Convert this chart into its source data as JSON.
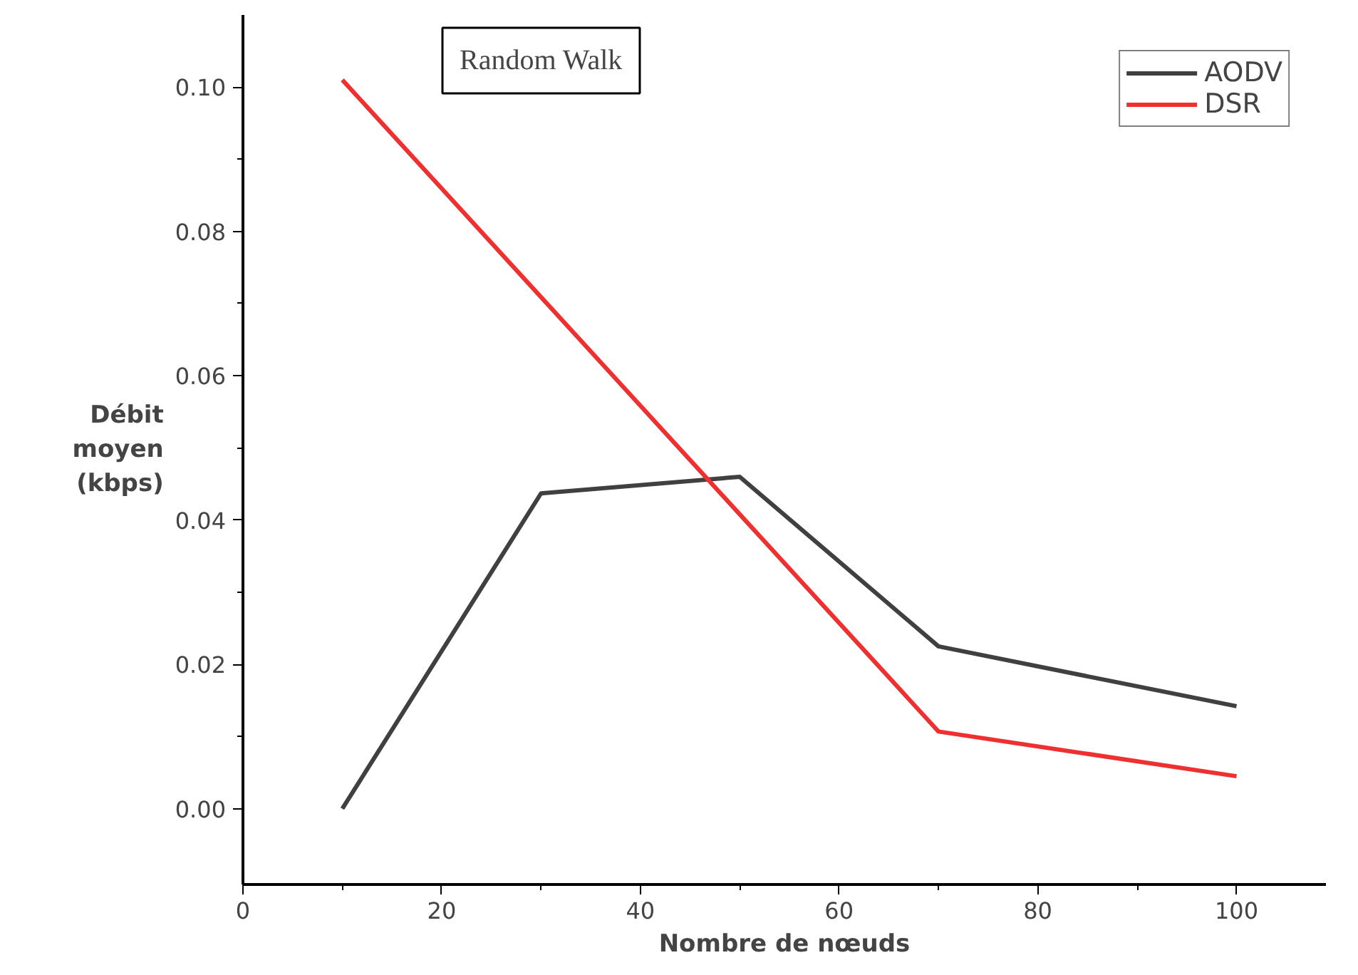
{
  "chart_data": {
    "type": "line",
    "title": "Random Walk",
    "xlabel": "Nombre de nœuds",
    "ylabel": "Débit\nmoyen\n(kbps)",
    "x": [
      10,
      30,
      50,
      70,
      100
    ],
    "series": [
      {
        "name": "AODV",
        "color": "#404040",
        "values": [
          0.0,
          0.0437,
          0.046,
          0.0225,
          0.0142
        ]
      },
      {
        "name": "DSR",
        "color": "#ee3030",
        "values": [
          0.101,
          0.0709,
          0.0408,
          0.0107,
          0.0045
        ]
      }
    ],
    "xlim": [
      0,
      109
    ],
    "xticks": [
      0,
      20,
      40,
      60,
      80,
      100
    ],
    "ylim": [
      -0.0105,
      0.11
    ],
    "yticks": [
      {
        "value": 0,
        "label": "0.00"
      },
      {
        "value": 0.02,
        "label": "0.02"
      },
      {
        "value": 0.04,
        "label": "0.04"
      },
      {
        "value": 0.06,
        "label": "0.06"
      },
      {
        "value": 0.08,
        "label": "0.08"
      },
      {
        "value": 0.1,
        "label": "0.10"
      }
    ],
    "grid": false,
    "legend": "top right",
    "marker": "none",
    "line_style": "solid"
  }
}
